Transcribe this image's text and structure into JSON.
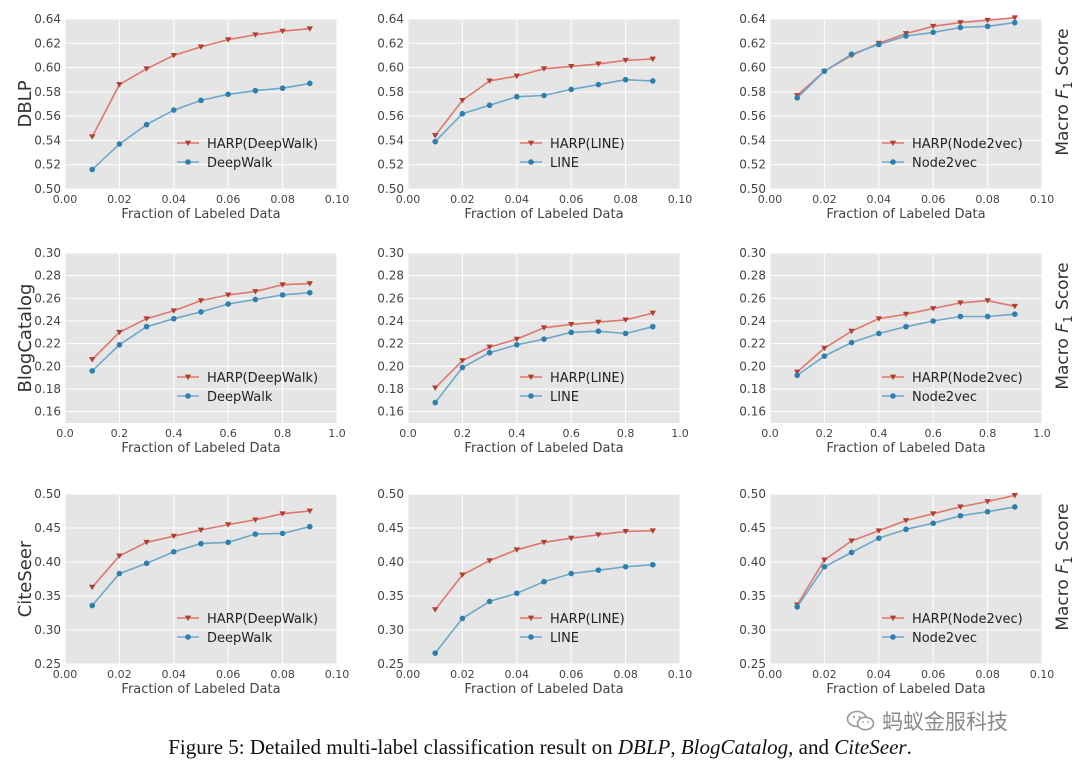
{
  "colors": {
    "harp": "#e0766e",
    "harp_marker": "#b03e32",
    "base": "#6ea8c8",
    "base_marker": "#2f7fae",
    "panel_bg": "#e5e5e5",
    "grid": "#ffffff"
  },
  "row_labels": [
    "DBLP",
    "BlogCatalog",
    "CiteSeer"
  ],
  "right_label": {
    "prefix": "Macro ",
    "F": "F",
    "sub": "1",
    "suffix": " Score"
  },
  "caption": {
    "lead": "Figure 5: Detailed multi-label classification result on ",
    "d1": "DBLP",
    "sep1": ", ",
    "d2": "BlogCatalog",
    "sep2": ", and ",
    "d3": "CiteSeer",
    "end": "."
  },
  "watermark": {
    "text": "蚂蚁金服科技",
    "icon": "wechat-icon"
  },
  "chart_data": [
    {
      "type": "line",
      "row": 0,
      "col": 0,
      "xlabel": "Fraction of Labeled Data",
      "xlim": [
        0.0,
        0.1
      ],
      "xticks": [
        "0.00",
        "0.02",
        "0.04",
        "0.06",
        "0.08",
        "0.10"
      ],
      "ylim": [
        0.5,
        0.64
      ],
      "yticks": [
        "0.50",
        "0.52",
        "0.54",
        "0.56",
        "0.58",
        "0.60",
        "0.62",
        "0.64"
      ],
      "x": [
        0.01,
        0.02,
        0.03,
        0.04,
        0.05,
        0.06,
        0.07,
        0.08,
        0.09
      ],
      "series": [
        {
          "name": "HARP(DeepWalk)",
          "values": [
            0.543,
            0.586,
            0.599,
            0.61,
            0.617,
            0.623,
            0.627,
            0.63,
            0.632
          ]
        },
        {
          "name": "DeepWalk",
          "values": [
            0.516,
            0.537,
            0.553,
            0.565,
            0.573,
            0.578,
            0.581,
            0.583,
            0.587
          ]
        }
      ]
    },
    {
      "type": "line",
      "row": 0,
      "col": 1,
      "xlabel": "Fraction of Labeled Data",
      "xlim": [
        0.0,
        0.1
      ],
      "xticks": [
        "0.00",
        "0.02",
        "0.04",
        "0.06",
        "0.08",
        "0.10"
      ],
      "ylim": [
        0.5,
        0.64
      ],
      "yticks": [
        "0.50",
        "0.52",
        "0.54",
        "0.56",
        "0.58",
        "0.60",
        "0.62",
        "0.64"
      ],
      "x": [
        0.01,
        0.02,
        0.03,
        0.04,
        0.05,
        0.06,
        0.07,
        0.08,
        0.09
      ],
      "series": [
        {
          "name": "HARP(LINE)",
          "values": [
            0.544,
            0.573,
            0.589,
            0.593,
            0.599,
            0.601,
            0.603,
            0.606,
            0.607
          ]
        },
        {
          "name": "LINE",
          "values": [
            0.539,
            0.562,
            0.569,
            0.576,
            0.577,
            0.582,
            0.586,
            0.59,
            0.589
          ]
        }
      ]
    },
    {
      "type": "line",
      "row": 0,
      "col": 2,
      "xlabel": "Fraction of Labeled Data",
      "xlim": [
        0.0,
        0.1
      ],
      "xticks": [
        "0.00",
        "0.02",
        "0.04",
        "0.06",
        "0.08",
        "0.10"
      ],
      "ylim": [
        0.5,
        0.64
      ],
      "yticks": [
        "0.50",
        "0.52",
        "0.54",
        "0.56",
        "0.58",
        "0.60",
        "0.62",
        "0.64"
      ],
      "x": [
        0.01,
        0.02,
        0.03,
        0.04,
        0.05,
        0.06,
        0.07,
        0.08,
        0.09
      ],
      "series": [
        {
          "name": "HARP(Node2vec)",
          "values": [
            0.577,
            0.597,
            0.61,
            0.62,
            0.628,
            0.634,
            0.637,
            0.639,
            0.641
          ]
        },
        {
          "name": "Node2vec",
          "values": [
            0.575,
            0.597,
            0.611,
            0.619,
            0.626,
            0.629,
            0.633,
            0.634,
            0.637
          ]
        }
      ]
    },
    {
      "type": "line",
      "row": 1,
      "col": 0,
      "xlabel": "Fraction of Labeled Data",
      "xlim": [
        0.0,
        1.0
      ],
      "xticks": [
        "0.0",
        "0.2",
        "0.4",
        "0.6",
        "0.8",
        "1.0"
      ],
      "ylim": [
        0.15,
        0.3
      ],
      "yticks": [
        "0.16",
        "0.18",
        "0.20",
        "0.22",
        "0.24",
        "0.26",
        "0.28",
        "0.30"
      ],
      "x": [
        0.1,
        0.2,
        0.3,
        0.4,
        0.5,
        0.6,
        0.7,
        0.8,
        0.9
      ],
      "series": [
        {
          "name": "HARP(DeepWalk)",
          "values": [
            0.206,
            0.23,
            0.242,
            0.249,
            0.258,
            0.263,
            0.266,
            0.272,
            0.273
          ]
        },
        {
          "name": "DeepWalk",
          "values": [
            0.196,
            0.219,
            0.235,
            0.242,
            0.248,
            0.255,
            0.259,
            0.263,
            0.265
          ]
        }
      ]
    },
    {
      "type": "line",
      "row": 1,
      "col": 1,
      "xlabel": "Fraction of Labeled Data",
      "xlim": [
        0.0,
        1.0
      ],
      "xticks": [
        "0.0",
        "0.2",
        "0.4",
        "0.6",
        "0.8",
        "1.0"
      ],
      "ylim": [
        0.15,
        0.3
      ],
      "yticks": [
        "0.16",
        "0.18",
        "0.20",
        "0.22",
        "0.24",
        "0.26",
        "0.28",
        "0.30"
      ],
      "x": [
        0.1,
        0.2,
        0.3,
        0.4,
        0.5,
        0.6,
        0.7,
        0.8,
        0.9
      ],
      "series": [
        {
          "name": "HARP(LINE)",
          "values": [
            0.181,
            0.205,
            0.217,
            0.224,
            0.234,
            0.237,
            0.239,
            0.241,
            0.247
          ]
        },
        {
          "name": "LINE",
          "values": [
            0.168,
            0.199,
            0.212,
            0.219,
            0.224,
            0.23,
            0.231,
            0.229,
            0.235
          ]
        }
      ]
    },
    {
      "type": "line",
      "row": 1,
      "col": 2,
      "xlabel": "Fraction of Labeled Data",
      "xlim": [
        0.0,
        1.0
      ],
      "xticks": [
        "0.0",
        "0.2",
        "0.4",
        "0.6",
        "0.8",
        "1.0"
      ],
      "ylim": [
        0.15,
        0.3
      ],
      "yticks": [
        "0.16",
        "0.18",
        "0.20",
        "0.22",
        "0.24",
        "0.26",
        "0.28",
        "0.30"
      ],
      "x": [
        0.1,
        0.2,
        0.3,
        0.4,
        0.5,
        0.6,
        0.7,
        0.8,
        0.9
      ],
      "series": [
        {
          "name": "HARP(Node2vec)",
          "values": [
            0.195,
            0.216,
            0.231,
            0.242,
            0.246,
            0.251,
            0.256,
            0.258,
            0.253
          ]
        },
        {
          "name": "Node2vec",
          "values": [
            0.192,
            0.209,
            0.221,
            0.229,
            0.235,
            0.24,
            0.244,
            0.244,
            0.246
          ]
        }
      ]
    },
    {
      "type": "line",
      "row": 2,
      "col": 0,
      "xlabel": "Fraction of Labeled Data",
      "xlim": [
        0.0,
        0.1
      ],
      "xticks": [
        "0.00",
        "0.02",
        "0.04",
        "0.06",
        "0.08",
        "0.10"
      ],
      "ylim": [
        0.25,
        0.5
      ],
      "yticks": [
        "0.25",
        "0.30",
        "0.35",
        "0.40",
        "0.45",
        "0.50"
      ],
      "x": [
        0.01,
        0.02,
        0.03,
        0.04,
        0.05,
        0.06,
        0.07,
        0.08,
        0.09
      ],
      "series": [
        {
          "name": "HARP(DeepWalk)",
          "values": [
            0.363,
            0.409,
            0.429,
            0.438,
            0.447,
            0.455,
            0.462,
            0.471,
            0.475
          ]
        },
        {
          "name": "DeepWalk",
          "values": [
            0.336,
            0.383,
            0.398,
            0.415,
            0.427,
            0.429,
            0.441,
            0.442,
            0.452
          ]
        }
      ]
    },
    {
      "type": "line",
      "row": 2,
      "col": 1,
      "xlabel": "Fraction of Labeled Data",
      "xlim": [
        0.0,
        0.1
      ],
      "xticks": [
        "0.00",
        "0.02",
        "0.04",
        "0.06",
        "0.08",
        "0.10"
      ],
      "ylim": [
        0.25,
        0.5
      ],
      "yticks": [
        "0.25",
        "0.30",
        "0.35",
        "0.40",
        "0.45",
        "0.50"
      ],
      "x": [
        0.01,
        0.02,
        0.03,
        0.04,
        0.05,
        0.06,
        0.07,
        0.08,
        0.09
      ],
      "series": [
        {
          "name": "HARP(LINE)",
          "values": [
            0.33,
            0.381,
            0.402,
            0.418,
            0.429,
            0.435,
            0.44,
            0.445,
            0.446
          ]
        },
        {
          "name": "LINE",
          "values": [
            0.266,
            0.317,
            0.342,
            0.354,
            0.371,
            0.383,
            0.388,
            0.393,
            0.396
          ]
        }
      ]
    },
    {
      "type": "line",
      "row": 2,
      "col": 2,
      "xlabel": "Fraction of Labeled Data",
      "xlim": [
        0.0,
        0.1
      ],
      "xticks": [
        "0.00",
        "0.02",
        "0.04",
        "0.06",
        "0.08",
        "0.10"
      ],
      "ylim": [
        0.25,
        0.5
      ],
      "yticks": [
        "0.25",
        "0.30",
        "0.35",
        "0.40",
        "0.45",
        "0.50"
      ],
      "x": [
        0.01,
        0.02,
        0.03,
        0.04,
        0.05,
        0.06,
        0.07,
        0.08,
        0.09
      ],
      "series": [
        {
          "name": "HARP(Node2vec)",
          "values": [
            0.337,
            0.403,
            0.431,
            0.446,
            0.461,
            0.471,
            0.481,
            0.489,
            0.498
          ]
        },
        {
          "name": "Node2vec",
          "values": [
            0.334,
            0.393,
            0.414,
            0.435,
            0.448,
            0.457,
            0.468,
            0.474,
            0.481
          ]
        }
      ]
    }
  ]
}
